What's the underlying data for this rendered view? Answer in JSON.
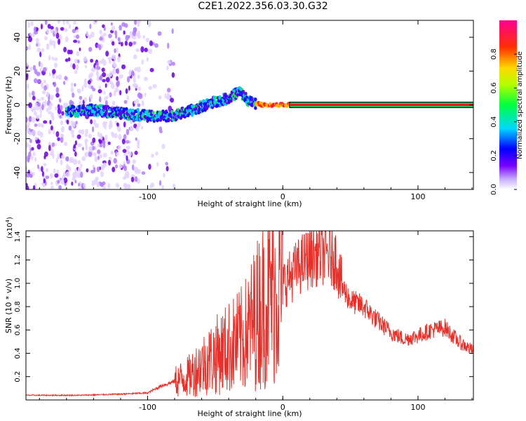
{
  "title": "C2E1.2022.356.03.30.G32",
  "chart_data": [
    {
      "type": "heatmap",
      "xlabel": "Height of straight line (km)",
      "ylabel": "Frequency (Hz)",
      "xlim": [
        -190,
        141
      ],
      "ylim": [
        -50,
        50
      ],
      "xticks": [
        -100,
        0,
        100
      ],
      "yticks": [
        -40,
        -20,
        0,
        20,
        40
      ],
      "description_points": {
        "x": [
          -160,
          -140,
          -120,
          -105,
          -95,
          -80,
          -70,
          -60,
          -50,
          -40,
          -32,
          -25,
          -15,
          -8,
          -3,
          0,
          5,
          10
        ],
        "freq_hz": [
          -4,
          -3,
          -5,
          -6,
          -7,
          -6,
          -4,
          -1,
          2,
          4,
          8,
          2,
          0,
          0,
          0,
          0,
          0,
          0
        ]
      },
      "carrier_line": {
        "freq_hz": 0,
        "x_start": 5,
        "x_end": 141
      },
      "colorbar": {
        "label": "Normalized spectral amplitude",
        "range": [
          0.0,
          1.0
        ],
        "ticks": [
          "0.0",
          "0.2",
          "0.4",
          "0.6",
          "0.8"
        ]
      }
    },
    {
      "type": "line",
      "xlabel": "Height of straight line (km)",
      "ylabel": "SNR (10 * v/v)",
      "scale_label_base": "(x10",
      "scale_label_exp": "4",
      "scale_label_close": ")",
      "xlim": [
        -190,
        141
      ],
      "ylim": [
        0.0,
        1.45
      ],
      "xticks": [
        -100,
        0,
        100
      ],
      "yticks": [
        "0.2",
        "0.4",
        "0.6",
        "0.8",
        "1.0",
        "1.2",
        "1.4"
      ],
      "series": [
        {
          "color": "#e8302a",
          "x": [
            -190,
            -150,
            -120,
            -100,
            -90,
            -80,
            -70,
            -60,
            -50,
            -40,
            -30,
            -25,
            -20,
            -15,
            -10,
            -5,
            0,
            5,
            10,
            15,
            20,
            25,
            30,
            35,
            40,
            42,
            45,
            50,
            60,
            70,
            80,
            90,
            100,
            110,
            120,
            130,
            141
          ],
          "y": [
            0.04,
            0.04,
            0.05,
            0.06,
            0.12,
            0.16,
            0.2,
            0.3,
            0.38,
            0.45,
            0.52,
            0.6,
            0.72,
            0.82,
            0.9,
            0.95,
            1.0,
            1.05,
            1.12,
            1.18,
            1.22,
            1.25,
            1.26,
            1.24,
            1.2,
            1.05,
            0.95,
            0.85,
            0.8,
            0.68,
            0.58,
            0.52,
            0.55,
            0.6,
            0.62,
            0.5,
            0.42
          ]
        }
      ]
    }
  ]
}
